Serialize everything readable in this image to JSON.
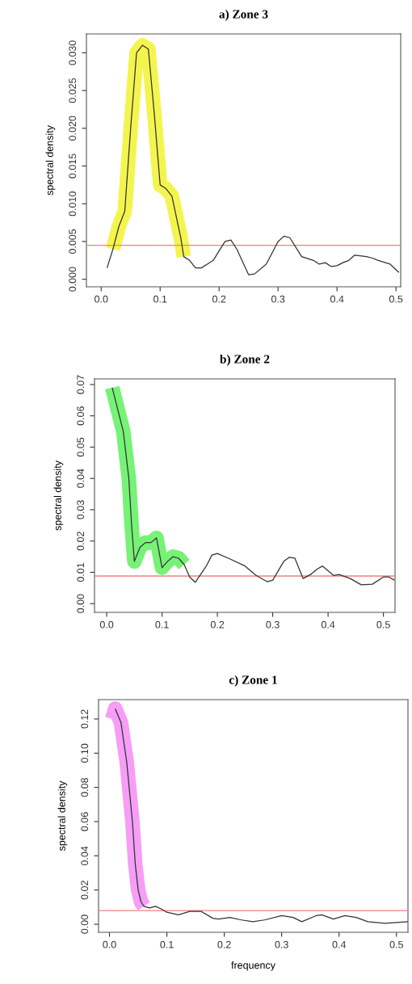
{
  "chart_data": [
    {
      "type": "line",
      "title": "a) Zone 3",
      "ylabel": "spectral density",
      "xlim": [
        -0.025,
        0.508
      ],
      "ylim": [
        -0.001,
        0.0325
      ],
      "xticks": [
        {
          "value": 0,
          "label": "0.0"
        },
        {
          "value": 0.1,
          "label": "0.1"
        },
        {
          "value": 0.2,
          "label": "0.2"
        },
        {
          "value": 0.3,
          "label": "0.3"
        },
        {
          "value": 0.4,
          "label": "0.4"
        },
        {
          "value": 0.5,
          "label": "0.5"
        }
      ],
      "yticks": [
        {
          "value": 0,
          "label": "0.000"
        },
        {
          "value": 0.005,
          "label": "0.005"
        },
        {
          "value": 0.01,
          "label": "0.010"
        },
        {
          "value": 0.015,
          "label": "0.015"
        },
        {
          "value": 0.02,
          "label": "0.020"
        },
        {
          "value": 0.025,
          "label": "0.025"
        },
        {
          "value": 0.03,
          "label": "0.030"
        }
      ],
      "grid": false,
      "ref_lines": [
        {
          "axis": "y",
          "value": 0.0045,
          "color": "#f08080"
        }
      ],
      "series": [
        {
          "color": "#f2f230",
          "x": [
            0.02,
            0.03,
            0.04,
            0.05,
            0.06,
            0.07,
            0.08,
            0.09,
            0.1,
            0.11,
            0.12,
            0.135,
            0.14
          ],
          "values": [
            0.004,
            0.007,
            0.009,
            0.02,
            0.03,
            0.031,
            0.0305,
            0.022,
            0.0125,
            0.012,
            0.011,
            0.0055,
            0.003
          ]
        },
        {
          "color": "#333333",
          "x": [
            0.01,
            0.02,
            0.03,
            0.04,
            0.05,
            0.06,
            0.07,
            0.08,
            0.09,
            0.1,
            0.11,
            0.12,
            0.135,
            0.14,
            0.15,
            0.16,
            0.17,
            0.18,
            0.19,
            0.21,
            0.22,
            0.23,
            0.25,
            0.26,
            0.28,
            0.3,
            0.31,
            0.32,
            0.34,
            0.36,
            0.37,
            0.38,
            0.39,
            0.4,
            0.41,
            0.42,
            0.43,
            0.45,
            0.46,
            0.47,
            0.49,
            0.505
          ],
          "values": [
            0.0015,
            0.004,
            0.007,
            0.009,
            0.02,
            0.03,
            0.031,
            0.0305,
            0.022,
            0.0125,
            0.012,
            0.011,
            0.0055,
            0.003,
            0.0025,
            0.0015,
            0.0015,
            0.002,
            0.0025,
            0.005,
            0.0052,
            0.004,
            0.0006,
            0.0007,
            0.002,
            0.005,
            0.0057,
            0.0055,
            0.003,
            0.0025,
            0.002,
            0.0022,
            0.0017,
            0.0018,
            0.0022,
            0.0025,
            0.0032,
            0.003,
            0.0028,
            0.0025,
            0.002,
            0.0009
          ]
        }
      ]
    },
    {
      "type": "line",
      "title": "b) Zone 2",
      "ylabel": "spectral density",
      "xlim": [
        -0.022,
        0.521
      ],
      "ylim": [
        -0.0028,
        0.0718
      ],
      "xticks": [
        {
          "value": 0,
          "label": "0.0"
        },
        {
          "value": 0.1,
          "label": "0.1"
        },
        {
          "value": 0.2,
          "label": "0.2"
        },
        {
          "value": 0.3,
          "label": "0.3"
        },
        {
          "value": 0.4,
          "label": "0.4"
        },
        {
          "value": 0.5,
          "label": "0.5"
        }
      ],
      "yticks": [
        {
          "value": 0,
          "label": "0.00"
        },
        {
          "value": 0.01,
          "label": "0.01"
        },
        {
          "value": 0.02,
          "label": "0.02"
        },
        {
          "value": 0.03,
          "label": "0.03"
        },
        {
          "value": 0.04,
          "label": "0.04"
        },
        {
          "value": 0.05,
          "label": "0.05"
        },
        {
          "value": 0.06,
          "label": "0.06"
        },
        {
          "value": 0.07,
          "label": "0.07"
        }
      ],
      "grid": false,
      "ref_lines": [
        {
          "axis": "y",
          "value": 0.0088,
          "color": "#f08080"
        }
      ],
      "series": [
        {
          "color": "#5ef05e",
          "x": [
            0.01,
            0.02,
            0.03,
            0.04,
            0.045,
            0.05,
            0.06,
            0.07,
            0.08,
            0.09,
            0.1,
            0.11,
            0.12,
            0.13,
            0.14
          ],
          "values": [
            0.069,
            0.062,
            0.055,
            0.04,
            0.025,
            0.0135,
            0.018,
            0.0195,
            0.0195,
            0.021,
            0.0115,
            0.0135,
            0.015,
            0.0145,
            0.0125
          ]
        },
        {
          "color": "#333333",
          "x": [
            0.01,
            0.02,
            0.03,
            0.04,
            0.045,
            0.05,
            0.06,
            0.07,
            0.08,
            0.09,
            0.1,
            0.11,
            0.12,
            0.13,
            0.14,
            0.15,
            0.16,
            0.18,
            0.19,
            0.2,
            0.22,
            0.25,
            0.27,
            0.29,
            0.3,
            0.32,
            0.33,
            0.34,
            0.355,
            0.37,
            0.38,
            0.39,
            0.41,
            0.42,
            0.44,
            0.46,
            0.48,
            0.5,
            0.51,
            0.52
          ],
          "values": [
            0.069,
            0.062,
            0.055,
            0.04,
            0.025,
            0.0135,
            0.018,
            0.0195,
            0.0195,
            0.021,
            0.0115,
            0.0135,
            0.015,
            0.0145,
            0.0125,
            0.0085,
            0.0068,
            0.012,
            0.0155,
            0.016,
            0.0145,
            0.012,
            0.009,
            0.007,
            0.0075,
            0.0135,
            0.0148,
            0.0145,
            0.008,
            0.0095,
            0.011,
            0.012,
            0.009,
            0.0093,
            0.008,
            0.006,
            0.0062,
            0.0085,
            0.0085,
            0.0075
          ]
        }
      ]
    },
    {
      "type": "line",
      "title": "c) Zone 1",
      "ylabel": "spectral density",
      "xlabel": "frequency",
      "xlim": [
        -0.019,
        0.52
      ],
      "ylim": [
        -0.0047,
        0.1313
      ],
      "xticks": [
        {
          "value": 0,
          "label": "0.0"
        },
        {
          "value": 0.1,
          "label": "0.1"
        },
        {
          "value": 0.2,
          "label": "0.2"
        },
        {
          "value": 0.3,
          "label": "0.3"
        },
        {
          "value": 0.4,
          "label": "0.4"
        },
        {
          "value": 0.5,
          "label": "0.5"
        }
      ],
      "yticks": [
        {
          "value": 0,
          "label": "0.00"
        },
        {
          "value": 0.02,
          "label": "0.02"
        },
        {
          "value": 0.04,
          "label": "0.04"
        },
        {
          "value": 0.06,
          "label": "0.06"
        },
        {
          "value": 0.08,
          "label": "0.08"
        },
        {
          "value": 0.1,
          "label": "0.10"
        },
        {
          "value": 0.12,
          "label": "0.12"
        }
      ],
      "grid": false,
      "ref_lines": [
        {
          "axis": "y",
          "value": 0.008,
          "color": "#f08080"
        }
      ],
      "series": [
        {
          "color": "#f58cf5",
          "x": [
            0.005,
            0.01,
            0.02,
            0.03,
            0.04,
            0.045,
            0.05,
            0.055,
            0.06
          ],
          "values": [
            0.12,
            0.126,
            0.118,
            0.095,
            0.06,
            0.035,
            0.02,
            0.013,
            0.0105
          ]
        },
        {
          "color": "#333333",
          "x": [
            0.01,
            0.02,
            0.03,
            0.04,
            0.045,
            0.05,
            0.055,
            0.06,
            0.07,
            0.08,
            0.09,
            0.1,
            0.12,
            0.14,
            0.16,
            0.18,
            0.19,
            0.21,
            0.23,
            0.25,
            0.27,
            0.3,
            0.32,
            0.335,
            0.36,
            0.37,
            0.39,
            0.41,
            0.43,
            0.45,
            0.48,
            0.5,
            0.52
          ],
          "values": [
            0.126,
            0.118,
            0.095,
            0.06,
            0.035,
            0.02,
            0.013,
            0.0105,
            0.0095,
            0.0105,
            0.009,
            0.007,
            0.0055,
            0.0075,
            0.0075,
            0.0035,
            0.003,
            0.004,
            0.0025,
            0.0015,
            0.0025,
            0.005,
            0.004,
            0.0015,
            0.005,
            0.0055,
            0.003,
            0.005,
            0.004,
            0.0015,
            0.0005,
            0.001,
            0.0015
          ]
        }
      ]
    }
  ]
}
